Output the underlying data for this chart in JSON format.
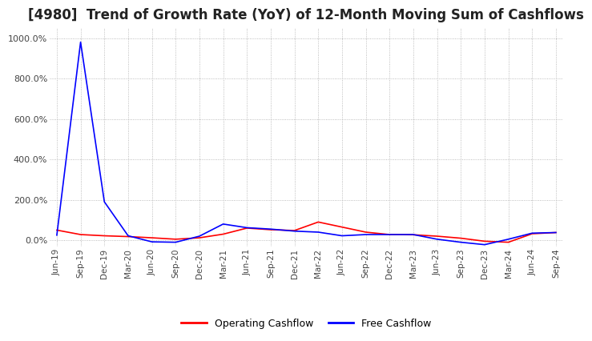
{
  "title": "[4980]  Trend of Growth Rate (YoY) of 12-Month Moving Sum of Cashflows",
  "title_fontsize": 12,
  "ylim": [
    -30,
    1050
  ],
  "yticks": [
    0,
    200,
    400,
    600,
    800,
    1000
  ],
  "ytick_labels": [
    "0.0%",
    "200.0%",
    "400.0%",
    "600.0%",
    "800.0%",
    "1000.0%"
  ],
  "background_color": "#ffffff",
  "grid_color": "#aaaaaa",
  "legend_labels": [
    "Operating Cashflow",
    "Free Cashflow"
  ],
  "legend_colors": [
    "#ff0000",
    "#0000ff"
  ],
  "x_dates": [
    "Jun-19",
    "Sep-19",
    "Dec-19",
    "Mar-20",
    "Jun-20",
    "Sep-20",
    "Dec-20",
    "Mar-21",
    "Jun-21",
    "Sep-21",
    "Dec-21",
    "Mar-22",
    "Jun-22",
    "Sep-22",
    "Dec-22",
    "Mar-23",
    "Jun-23",
    "Sep-23",
    "Dec-23",
    "Mar-24",
    "Jun-24",
    "Sep-24"
  ],
  "operating_cashflow": [
    50,
    28,
    22,
    18,
    12,
    5,
    12,
    30,
    60,
    52,
    48,
    90,
    65,
    40,
    28,
    27,
    20,
    10,
    -5,
    -10,
    32,
    38
  ],
  "free_cashflow": [
    25,
    980,
    190,
    22,
    -8,
    -10,
    20,
    80,
    62,
    55,
    45,
    40,
    22,
    28,
    28,
    28,
    5,
    -10,
    -22,
    5,
    35,
    38
  ]
}
